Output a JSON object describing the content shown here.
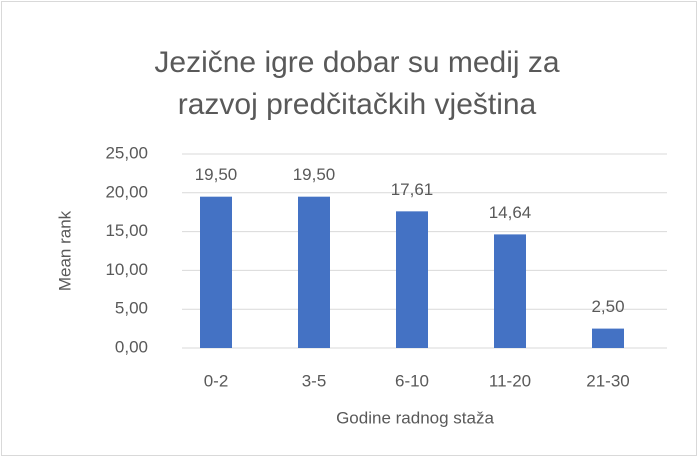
{
  "chart_data": {
    "type": "bar",
    "title": [
      "Jezične igre dobar su medij za",
      "razvoj predčitačkih vještina"
    ],
    "categories": [
      "0-2",
      "3-5",
      "6-10",
      "11-20",
      "21-30"
    ],
    "values": [
      19.5,
      19.5,
      17.61,
      14.64,
      2.5
    ],
    "value_labels": [
      "19,50",
      "19,50",
      "17,61",
      "14,64",
      "2,50"
    ],
    "color": "#4472c4",
    "ylim": [
      0,
      25
    ],
    "yticks": [
      {
        "value": 0,
        "label": "0,00"
      },
      {
        "value": 5,
        "label": "5,00"
      },
      {
        "value": 10,
        "label": "10,00"
      },
      {
        "value": 15,
        "label": "15,00"
      },
      {
        "value": 20,
        "label": "20,00"
      },
      {
        "value": 25,
        "label": "25,00"
      }
    ],
    "grid": true,
    "xlabel": "Godine radnog staža",
    "ylabel": "Mean rank"
  }
}
